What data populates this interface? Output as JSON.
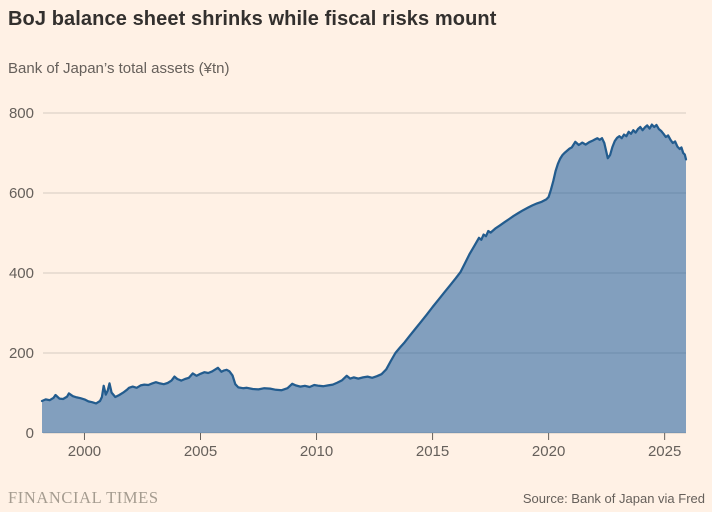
{
  "header": {
    "title": "BoJ balance sheet shrinks while fiscal risks mount",
    "subtitle": "Bank of Japan’s total assets (¥tn)"
  },
  "footer": {
    "brand": "FINANCIAL TIMES",
    "source": "Source: Bank of Japan via Fred"
  },
  "chart_data": {
    "type": "area",
    "title": "BoJ balance sheet shrinks while fiscal risks mount",
    "subtitle": "Bank of Japan’s total assets (¥tn)",
    "xlabel": "",
    "ylabel": "",
    "xlim": [
      1998.17,
      2025.92
    ],
    "ylim": [
      0,
      800
    ],
    "x_ticks": [
      2000,
      2005,
      2010,
      2015,
      2020,
      2025
    ],
    "y_ticks": [
      0,
      200,
      400,
      600,
      800
    ],
    "grid": true,
    "legend": false,
    "colors": {
      "background": "#FFF1E5",
      "line": "#235C8E",
      "fill": "#0F5499",
      "fill_opacity": 0.52,
      "grid": "#D6CCC1",
      "tick_text": "#66605B",
      "title_text": "#33302E",
      "brand_text": "#A59C90"
    },
    "series": [
      {
        "name": "BoJ total assets (¥tn)",
        "points": [
          [
            1998.17,
            80
          ],
          [
            1998.33,
            84
          ],
          [
            1998.5,
            82
          ],
          [
            1998.67,
            88
          ],
          [
            1998.75,
            95
          ],
          [
            1998.92,
            86
          ],
          [
            1999.08,
            85
          ],
          [
            1999.25,
            91
          ],
          [
            1999.33,
            99
          ],
          [
            1999.5,
            92
          ],
          [
            1999.67,
            89
          ],
          [
            1999.83,
            87
          ],
          [
            2000.0,
            84
          ],
          [
            2000.17,
            79
          ],
          [
            2000.33,
            77
          ],
          [
            2000.5,
            74
          ],
          [
            2000.67,
            80
          ],
          [
            2000.75,
            90
          ],
          [
            2000.83,
            118
          ],
          [
            2000.92,
            96
          ],
          [
            2001.0,
            106
          ],
          [
            2001.08,
            124
          ],
          [
            2001.17,
            101
          ],
          [
            2001.33,
            90
          ],
          [
            2001.5,
            95
          ],
          [
            2001.67,
            101
          ],
          [
            2001.83,
            108
          ],
          [
            2001.92,
            113
          ],
          [
            2002.08,
            116
          ],
          [
            2002.25,
            113
          ],
          [
            2002.42,
            119
          ],
          [
            2002.58,
            121
          ],
          [
            2002.75,
            120
          ],
          [
            2002.92,
            124
          ],
          [
            2003.08,
            127
          ],
          [
            2003.25,
            124
          ],
          [
            2003.42,
            122
          ],
          [
            2003.58,
            125
          ],
          [
            2003.75,
            131
          ],
          [
            2003.88,
            141
          ],
          [
            2004.0,
            135
          ],
          [
            2004.17,
            131
          ],
          [
            2004.33,
            135
          ],
          [
            2004.5,
            138
          ],
          [
            2004.67,
            149
          ],
          [
            2004.83,
            143
          ],
          [
            2005.0,
            148
          ],
          [
            2005.17,
            152
          ],
          [
            2005.33,
            150
          ],
          [
            2005.5,
            154
          ],
          [
            2005.75,
            163
          ],
          [
            2005.9,
            153
          ],
          [
            2006.0,
            156
          ],
          [
            2006.13,
            158
          ],
          [
            2006.25,
            154
          ],
          [
            2006.38,
            144
          ],
          [
            2006.5,
            122
          ],
          [
            2006.63,
            114
          ],
          [
            2006.83,
            112
          ],
          [
            2007.0,
            113
          ],
          [
            2007.25,
            110
          ],
          [
            2007.5,
            109
          ],
          [
            2007.75,
            112
          ],
          [
            2008.0,
            111
          ],
          [
            2008.25,
            108
          ],
          [
            2008.5,
            107
          ],
          [
            2008.75,
            112
          ],
          [
            2008.95,
            123
          ],
          [
            2009.1,
            119
          ],
          [
            2009.3,
            116
          ],
          [
            2009.5,
            118
          ],
          [
            2009.7,
            115
          ],
          [
            2009.9,
            120
          ],
          [
            2010.1,
            118
          ],
          [
            2010.3,
            117
          ],
          [
            2010.5,
            119
          ],
          [
            2010.7,
            121
          ],
          [
            2010.9,
            126
          ],
          [
            2011.1,
            132
          ],
          [
            2011.3,
            143
          ],
          [
            2011.45,
            136
          ],
          [
            2011.6,
            139
          ],
          [
            2011.8,
            136
          ],
          [
            2012.0,
            139
          ],
          [
            2012.2,
            141
          ],
          [
            2012.4,
            138
          ],
          [
            2012.6,
            142
          ],
          [
            2012.8,
            147
          ],
          [
            2013.0,
            159
          ],
          [
            2013.2,
            180
          ],
          [
            2013.4,
            200
          ],
          [
            2013.6,
            214
          ],
          [
            2013.8,
            227
          ],
          [
            2014.0,
            242
          ],
          [
            2014.25,
            260
          ],
          [
            2014.5,
            278
          ],
          [
            2014.75,
            296
          ],
          [
            2015.0,
            315
          ],
          [
            2015.25,
            333
          ],
          [
            2015.5,
            351
          ],
          [
            2015.75,
            369
          ],
          [
            2016.0,
            387
          ],
          [
            2016.2,
            402
          ],
          [
            2016.4,
            425
          ],
          [
            2016.6,
            448
          ],
          [
            2016.8,
            468
          ],
          [
            2017.0,
            488
          ],
          [
            2017.1,
            483
          ],
          [
            2017.2,
            496
          ],
          [
            2017.3,
            492
          ],
          [
            2017.4,
            505
          ],
          [
            2017.5,
            501
          ],
          [
            2017.7,
            511
          ],
          [
            2017.9,
            519
          ],
          [
            2018.1,
            527
          ],
          [
            2018.3,
            535
          ],
          [
            2018.5,
            543
          ],
          [
            2018.7,
            550
          ],
          [
            2018.9,
            557
          ],
          [
            2019.1,
            563
          ],
          [
            2019.3,
            569
          ],
          [
            2019.5,
            574
          ],
          [
            2019.7,
            578
          ],
          [
            2019.9,
            584
          ],
          [
            2020.0,
            590
          ],
          [
            2020.1,
            608
          ],
          [
            2020.2,
            630
          ],
          [
            2020.3,
            655
          ],
          [
            2020.4,
            673
          ],
          [
            2020.5,
            686
          ],
          [
            2020.6,
            695
          ],
          [
            2020.7,
            701
          ],
          [
            2020.8,
            706
          ],
          [
            2020.9,
            711
          ],
          [
            2021.0,
            714
          ],
          [
            2021.15,
            728
          ],
          [
            2021.3,
            720
          ],
          [
            2021.45,
            726
          ],
          [
            2021.6,
            721
          ],
          [
            2021.75,
            727
          ],
          [
            2021.9,
            731
          ],
          [
            2022.0,
            734
          ],
          [
            2022.1,
            737
          ],
          [
            2022.2,
            733
          ],
          [
            2022.3,
            737
          ],
          [
            2022.4,
            725
          ],
          [
            2022.5,
            700
          ],
          [
            2022.55,
            687
          ],
          [
            2022.65,
            695
          ],
          [
            2022.75,
            715
          ],
          [
            2022.85,
            730
          ],
          [
            2022.95,
            738
          ],
          [
            2023.05,
            742
          ],
          [
            2023.15,
            737
          ],
          [
            2023.25,
            746
          ],
          [
            2023.35,
            742
          ],
          [
            2023.45,
            753
          ],
          [
            2023.55,
            748
          ],
          [
            2023.65,
            757
          ],
          [
            2023.75,
            751
          ],
          [
            2023.85,
            760
          ],
          [
            2023.95,
            765
          ],
          [
            2024.05,
            757
          ],
          [
            2024.15,
            764
          ],
          [
            2024.25,
            769
          ],
          [
            2024.35,
            761
          ],
          [
            2024.45,
            771
          ],
          [
            2024.55,
            765
          ],
          [
            2024.65,
            770
          ],
          [
            2024.75,
            760
          ],
          [
            2024.85,
            755
          ],
          [
            2024.95,
            748
          ],
          [
            2025.05,
            740
          ],
          [
            2025.15,
            744
          ],
          [
            2025.25,
            733
          ],
          [
            2025.35,
            725
          ],
          [
            2025.45,
            729
          ],
          [
            2025.55,
            716
          ],
          [
            2025.65,
            710
          ],
          [
            2025.72,
            714
          ],
          [
            2025.8,
            700
          ],
          [
            2025.87,
            696
          ],
          [
            2025.92,
            684
          ]
        ]
      }
    ]
  }
}
